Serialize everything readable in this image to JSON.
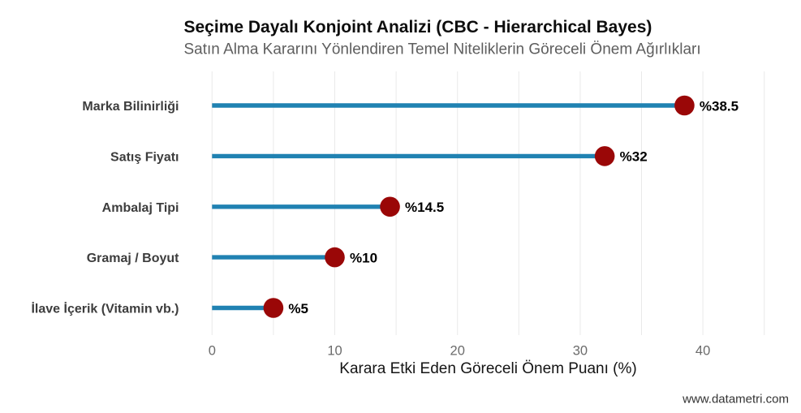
{
  "chart_data": {
    "type": "bar",
    "variant": "lollipop",
    "orientation": "horizontal",
    "title": "Seçime Dayalı Konjoint Analizi (CBC - Hierarchical Bayes)",
    "subtitle": "Satın Alma Kararını Yönlendiren Temel Niteliklerin Göreceli Önem Ağırlıkları",
    "categories": [
      "Marka Bilinirliği",
      "Satış Fiyatı",
      "Ambalaj Tipi",
      "Gramaj / Boyut",
      "İlave İçerik (Vitamin vb.)"
    ],
    "values": [
      38.5,
      32,
      14.5,
      10,
      5
    ],
    "value_labels": [
      "%38.5",
      "%32",
      "%14.5",
      "%10",
      "%5"
    ],
    "xlabel": "Karara Etki Eden Göreceli Önem Puanı (%)",
    "ylabel": "",
    "xlim": [
      -2.25,
      47.25
    ],
    "x_ticks": [
      0,
      10,
      20,
      30,
      40
    ],
    "gridline_values": [
      0,
      5,
      10,
      15,
      20,
      25,
      30,
      35,
      40,
      45
    ],
    "grid": "vertical-only",
    "legend": "none",
    "caption": "www.datametri.com",
    "colors": {
      "stem": "#2082B2",
      "dot": "#9A0707",
      "grid": "#e9e9e9",
      "title": "#0d0d0d",
      "subtitle": "#5e5e5e",
      "axis_title": "#141414",
      "tick_label": "#6b6b6b",
      "category_label": "#3d3d3d",
      "value_label": "#000000",
      "caption_color": "#333333",
      "background": "#ffffff"
    }
  }
}
